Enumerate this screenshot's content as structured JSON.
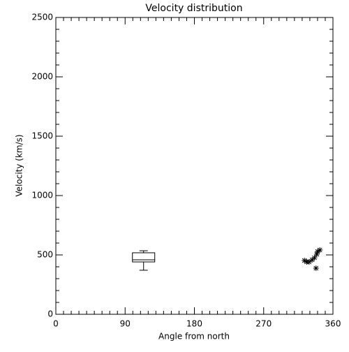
{
  "chart_data": {
    "type": "box",
    "title": "Velocity distribution",
    "x_label": "Angle from north",
    "y_label": "Velocity (km/s)",
    "xlim": [
      0,
      360
    ],
    "xticks": [
      0,
      90,
      180,
      270,
      360
    ],
    "ylim": [
      0,
      2500
    ],
    "yticks": [
      0,
      500,
      1000,
      1500,
      2000,
      2500
    ],
    "color": "#000000",
    "boxes": [
      {
        "x": 114,
        "whislo": 371,
        "q1": 441,
        "med": 459,
        "q3": 518,
        "whishi": 535
      }
    ],
    "points": {
      "x": [
        323,
        326,
        329,
        333,
        336,
        338,
        339,
        340,
        343
      ],
      "y": [
        453,
        441,
        441,
        459,
        476,
        388,
        506,
        529,
        541
      ]
    }
  }
}
